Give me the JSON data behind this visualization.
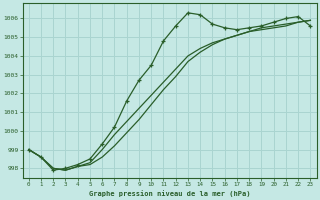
{
  "xlabel": "Graphe pression niveau de la mer (hPa)",
  "background_color": "#c5e8e4",
  "grid_color": "#aad4d0",
  "line_color": "#2a5e2a",
  "xlim": [
    -0.5,
    23.5
  ],
  "ylim": [
    997.5,
    1006.8
  ],
  "yticks": [
    998,
    999,
    1000,
    1001,
    1002,
    1003,
    1004,
    1005,
    1006
  ],
  "xticks": [
    0,
    1,
    2,
    3,
    4,
    5,
    6,
    7,
    8,
    9,
    10,
    11,
    12,
    13,
    14,
    15,
    16,
    17,
    18,
    19,
    20,
    21,
    22,
    23
  ],
  "line1_x": [
    0,
    1,
    2,
    3,
    4,
    5,
    6,
    7,
    8,
    9,
    10,
    11,
    12,
    13,
    14,
    15,
    16,
    17,
    18,
    19,
    20,
    21,
    22,
    23
  ],
  "line1_y": [
    999.0,
    998.6,
    997.9,
    998.0,
    998.2,
    998.5,
    999.3,
    1000.2,
    1001.6,
    1002.7,
    1003.5,
    1004.8,
    1005.6,
    1006.3,
    1006.2,
    1005.7,
    1005.5,
    1005.4,
    1005.5,
    1005.6,
    1005.8,
    1006.0,
    1006.1,
    1005.6
  ],
  "line2_x": [
    0,
    1,
    2,
    3,
    4,
    5,
    6,
    7,
    8,
    9,
    10,
    11,
    12,
    13,
    14,
    15,
    16,
    17,
    18,
    19,
    20,
    21,
    22,
    23
  ],
  "line2_y": [
    999.0,
    998.6,
    998.0,
    997.9,
    998.1,
    998.3,
    999.0,
    999.8,
    1000.5,
    1001.2,
    1001.9,
    1002.6,
    1003.3,
    1004.0,
    1004.4,
    1004.7,
    1004.9,
    1005.1,
    1005.3,
    1005.4,
    1005.5,
    1005.6,
    1005.8,
    1005.9
  ],
  "line3_x": [
    0,
    1,
    2,
    3,
    4,
    5,
    6,
    7,
    8,
    9,
    10,
    11,
    12,
    13,
    14,
    15,
    16,
    17,
    18,
    19,
    20,
    21,
    22,
    23
  ],
  "line3_y": [
    999.0,
    998.6,
    998.0,
    997.9,
    998.1,
    998.2,
    998.6,
    999.2,
    999.9,
    1000.6,
    1001.4,
    1002.2,
    1002.9,
    1003.7,
    1004.2,
    1004.6,
    1004.9,
    1005.1,
    1005.3,
    1005.5,
    1005.6,
    1005.7,
    1005.8,
    1005.9
  ]
}
